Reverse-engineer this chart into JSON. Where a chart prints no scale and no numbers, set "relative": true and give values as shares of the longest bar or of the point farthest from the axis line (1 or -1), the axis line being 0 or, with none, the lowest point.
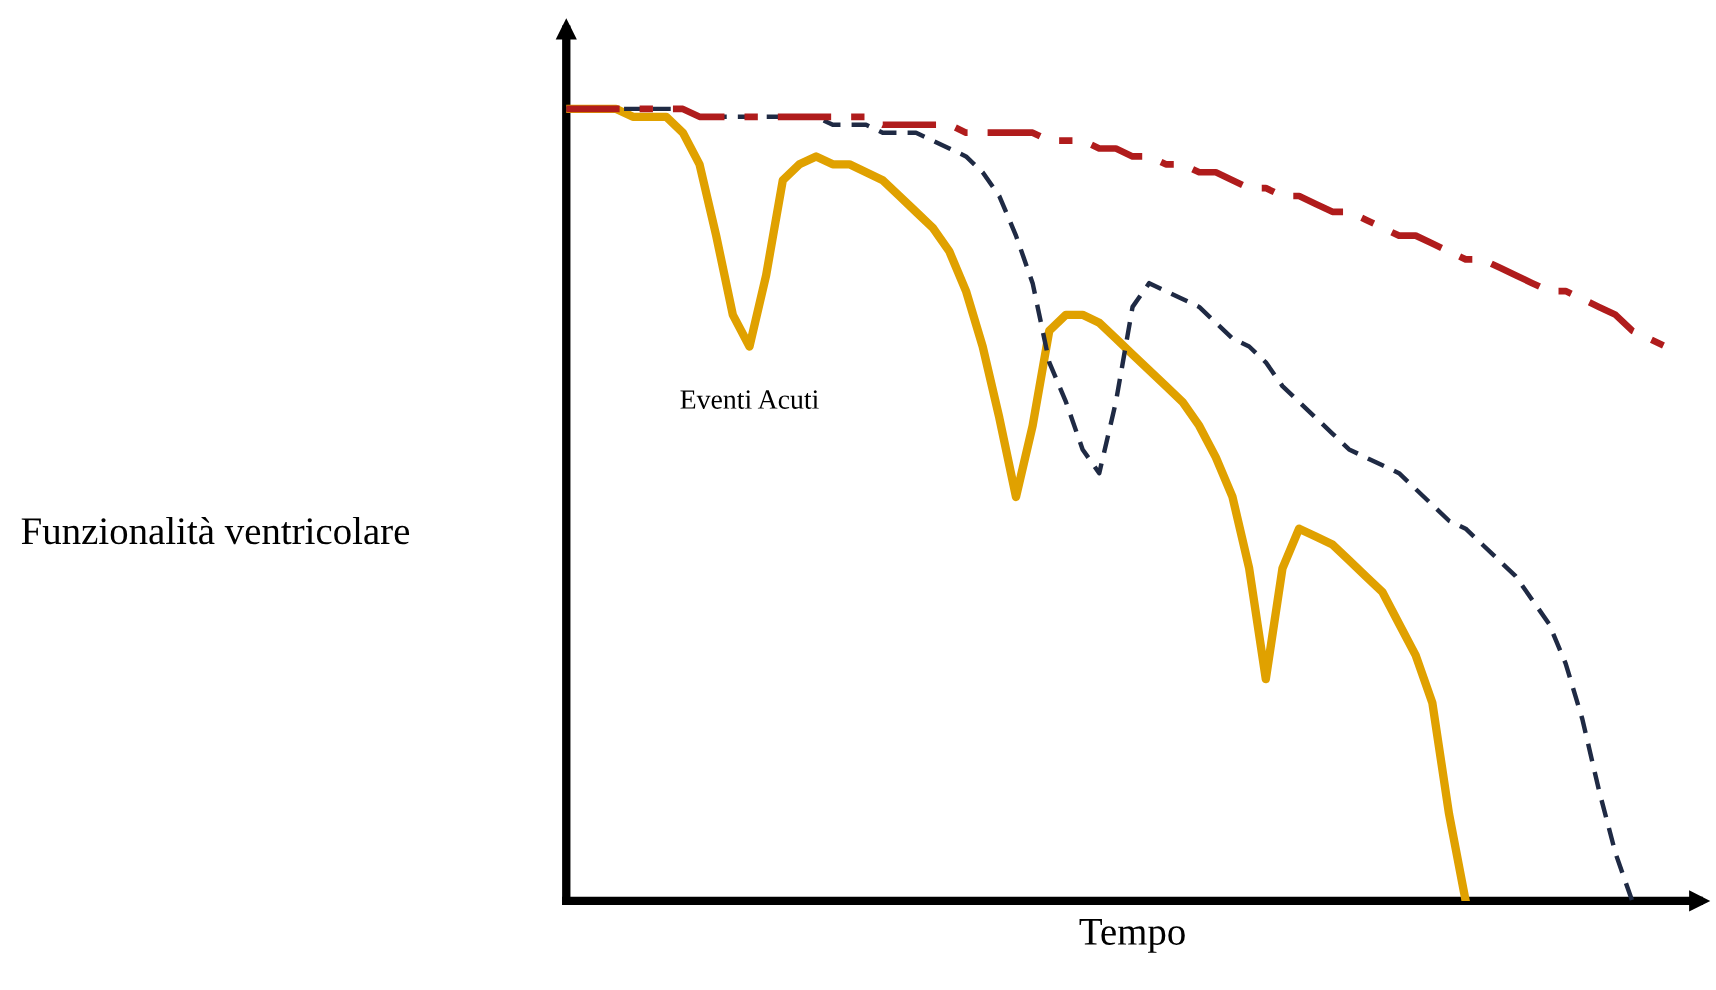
{
  "chart_data": {
    "type": "line",
    "relative": true,
    "xlabel": "Tempo",
    "ylabel": "Funzionalità ventricolare",
    "tick_labels": false,
    "legend": false,
    "marker": "none",
    "annotations": [
      "Eventi Acuti"
    ],
    "categories": [
      null,
      null,
      null,
      null,
      null,
      null,
      null,
      null,
      null,
      null,
      null,
      null,
      null,
      null,
      null,
      null,
      null,
      null,
      null,
      null,
      null,
      null,
      null,
      null,
      null,
      null,
      null,
      null,
      null,
      null,
      null,
      null,
      null,
      null,
      null,
      null,
      null,
      null,
      null,
      null,
      null,
      null,
      null,
      null,
      null,
      null,
      null,
      null,
      null,
      null,
      null,
      null,
      null,
      null,
      null,
      null,
      null,
      null,
      null,
      null,
      null,
      null,
      null,
      null,
      null,
      null,
      null,
      null
    ],
    "series": [
      {
        "color": "#b01c1c",
        "line_style": "dashdot",
        "values": [
          1.0,
          1.0,
          1.0,
          1.0,
          1.0,
          1.0,
          1.0,
          1.0,
          0.99,
          0.99,
          0.99,
          0.99,
          0.99,
          0.99,
          0.99,
          0.99,
          0.99,
          0.99,
          0.99,
          0.98,
          0.98,
          0.98,
          0.98,
          0.98,
          0.97,
          0.97,
          0.97,
          0.97,
          0.97,
          0.96,
          0.96,
          0.96,
          0.95,
          0.95,
          0.94,
          0.94,
          0.93,
          0.93,
          0.92,
          0.92,
          0.91,
          0.9,
          0.9,
          0.89,
          0.89,
          0.88,
          0.87,
          0.87,
          0.86,
          0.85,
          0.84,
          0.84,
          0.83,
          0.82,
          0.81,
          0.81,
          0.8,
          0.79,
          0.78,
          0.77,
          0.77,
          0.76,
          0.75,
          0.74,
          0.72,
          0.71,
          0.7,
          null
        ]
      },
      {
        "color": "#1f2a44",
        "line_style": "dashed",
        "values": [
          1.0,
          1.0,
          1.0,
          1.0,
          1.0,
          1.0,
          1.0,
          1.0,
          0.99,
          0.99,
          0.99,
          0.99,
          0.99,
          0.99,
          0.99,
          0.99,
          0.98,
          0.98,
          0.98,
          0.97,
          0.97,
          0.97,
          0.96,
          0.95,
          0.94,
          0.92,
          0.89,
          0.84,
          0.78,
          0.68,
          0.63,
          0.57,
          0.54,
          0.63,
          0.75,
          0.78,
          0.77,
          0.76,
          0.75,
          0.73,
          0.71,
          0.7,
          0.68,
          0.65,
          0.63,
          0.61,
          0.59,
          0.57,
          0.56,
          0.55,
          0.54,
          0.52,
          0.5,
          0.48,
          0.47,
          0.45,
          0.43,
          0.41,
          0.38,
          0.35,
          0.3,
          0.23,
          0.14,
          0.06,
          0.0,
          null,
          null,
          null
        ]
      },
      {
        "color": "#e0a100",
        "line_style": "solid",
        "values": [
          1.0,
          1.0,
          1.0,
          1.0,
          0.99,
          0.99,
          0.99,
          0.97,
          0.93,
          0.84,
          0.74,
          0.7,
          0.79,
          0.91,
          0.93,
          0.94,
          0.93,
          0.93,
          0.92,
          0.91,
          0.89,
          0.87,
          0.85,
          0.82,
          0.77,
          0.7,
          0.61,
          0.51,
          0.6,
          0.72,
          0.74,
          0.74,
          0.73,
          0.71,
          0.69,
          0.67,
          0.65,
          0.63,
          0.6,
          0.56,
          0.51,
          0.42,
          0.28,
          0.42,
          0.47,
          0.46,
          0.45,
          0.43,
          0.41,
          0.39,
          0.35,
          0.31,
          0.25,
          0.11,
          0.0,
          null,
          null,
          null,
          null,
          null,
          null,
          null,
          null,
          null,
          null,
          null,
          null,
          null
        ]
      }
    ]
  }
}
